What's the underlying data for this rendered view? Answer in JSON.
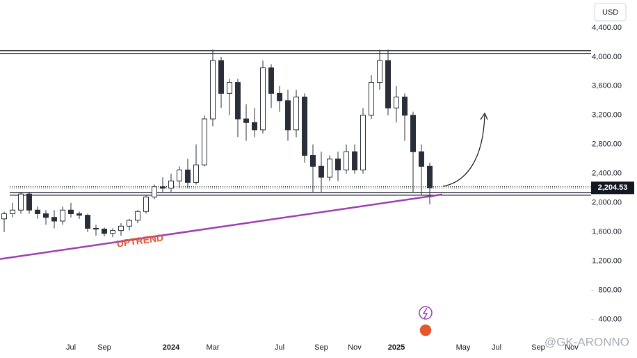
{
  "chart_data": {
    "type": "candlestick",
    "currency": "USD",
    "annotation": "UPTREND",
    "watermark": "@GK-ARONNO",
    "categories": [
      null,
      null,
      null,
      null,
      null,
      null,
      null,
      null,
      "Jul",
      null,
      null,
      null,
      "Sep",
      null,
      null,
      null,
      null,
      null,
      null,
      null,
      "2024",
      null,
      null,
      null,
      null,
      "Mar",
      null,
      null,
      null,
      null,
      null,
      null,
      null,
      "Jul",
      null,
      null,
      null,
      null,
      "Sep",
      null,
      null,
      null,
      "Nov",
      null,
      null,
      null,
      null,
      "2025",
      null,
      null,
      null,
      null,
      null,
      null,
      null,
      "May",
      null,
      null,
      null,
      "Jul",
      null,
      null,
      null,
      null,
      "Sep",
      null,
      null,
      null,
      "Nov",
      null,
      null
    ],
    "open": [
      1780,
      1850,
      1900,
      2120,
      1900,
      1850,
      1800,
      1750,
      1900,
      1850,
      1830,
      1650,
      1640,
      1580,
      1620,
      1680,
      1760,
      1880,
      2080,
      2220,
      2200,
      2300,
      2450,
      2280,
      2520,
      3150,
      3950,
      3500,
      3650,
      3150,
      3100,
      3000,
      3850,
      3500,
      3400,
      3000,
      3450,
      2650,
      2500,
      2350,
      2600,
      2450,
      2700,
      2450,
      3200,
      3650,
      3950,
      3300,
      3450,
      3200,
      2700,
      2500,
      null,
      null,
      null,
      null,
      null,
      null,
      null,
      null,
      null,
      null,
      null,
      null,
      null,
      null,
      null,
      null,
      null,
      null,
      null
    ],
    "high": [
      1880,
      2000,
      2150,
      2140,
      1950,
      1900,
      1900,
      1950,
      2000,
      1880,
      1850,
      1700,
      1660,
      1650,
      1720,
      1780,
      1900,
      2100,
      2250,
      2350,
      2400,
      2500,
      2600,
      2800,
      3200,
      4100,
      4000,
      3700,
      3700,
      3350,
      3300,
      3950,
      3900,
      3600,
      3550,
      3550,
      3500,
      2800,
      2700,
      2650,
      2700,
      2800,
      2800,
      3300,
      3750,
      4100,
      4100,
      3600,
      3500,
      3250,
      2800,
      2550,
      null,
      null,
      null,
      null,
      null,
      null,
      null,
      null,
      null,
      null,
      null,
      null,
      null,
      null,
      null,
      null,
      null,
      null,
      null
    ],
    "low": [
      1600,
      1800,
      1850,
      1850,
      1780,
      1700,
      1650,
      1700,
      1800,
      1780,
      1600,
      1550,
      1540,
      1530,
      1550,
      1620,
      1720,
      1850,
      2050,
      2150,
      2150,
      2200,
      2200,
      2250,
      2500,
      3050,
      3300,
      3200,
      2900,
      2850,
      2900,
      2950,
      3300,
      3250,
      2850,
      2900,
      2550,
      2150,
      2150,
      2300,
      2300,
      2400,
      2400,
      2400,
      3150,
      3550,
      3200,
      3100,
      2850,
      2150,
      2100,
      1980,
      null,
      null,
      null,
      null,
      null,
      null,
      null,
      null,
      null,
      null,
      null,
      null,
      null,
      null,
      null,
      null,
      null,
      null,
      null
    ],
    "close": [
      1850,
      1900,
      2120,
      1900,
      1850,
      1800,
      1750,
      1900,
      1850,
      1830,
      1650,
      1640,
      1580,
      1620,
      1680,
      1760,
      1880,
      2080,
      2220,
      2200,
      2300,
      2450,
      2280,
      2520,
      3150,
      3950,
      3500,
      3650,
      3150,
      3100,
      3000,
      3850,
      3500,
      3400,
      3000,
      3450,
      2650,
      2500,
      2350,
      2600,
      2450,
      2700,
      2450,
      3200,
      3650,
      3950,
      3300,
      3450,
      3200,
      2700,
      2500,
      2204.53,
      null,
      null,
      null,
      null,
      null,
      null,
      null,
      null,
      null,
      null,
      null,
      null,
      null,
      null,
      null,
      null,
      null,
      null,
      null
    ],
    "up_color": "#ffffff",
    "down_color": "#2a2e39",
    "wick_color": "#2a2e39",
    "ylim": [
      130,
      4780
    ],
    "yticks": [
      {
        "value": 400,
        "label": "400.00"
      },
      {
        "value": 800,
        "label": "800.00"
      },
      {
        "value": 1200,
        "label": "1,200.00"
      },
      {
        "value": 1600,
        "label": "1,600.00"
      },
      {
        "value": 2000,
        "label": "2,000.00"
      },
      {
        "value": 2400,
        "label": "2,400.00"
      },
      {
        "value": 2800,
        "label": "2,800.00"
      },
      {
        "value": 3200,
        "label": "3,200.00"
      },
      {
        "value": 3600,
        "label": "3,600.00"
      },
      {
        "value": 4000,
        "label": "4,000.00"
      },
      {
        "value": 4400,
        "label": "4,400.00"
      }
    ],
    "last_price": {
      "value": 2204.53,
      "label": "2,204.53"
    },
    "resistance": [
      4086,
      4048
    ],
    "support": [
      2143,
      2105
    ],
    "dotted_levels": [
      2204.53,
      2222
    ],
    "trendline": [
      1229,
      2114
    ],
    "trend_color": "#9c3fb5"
  }
}
